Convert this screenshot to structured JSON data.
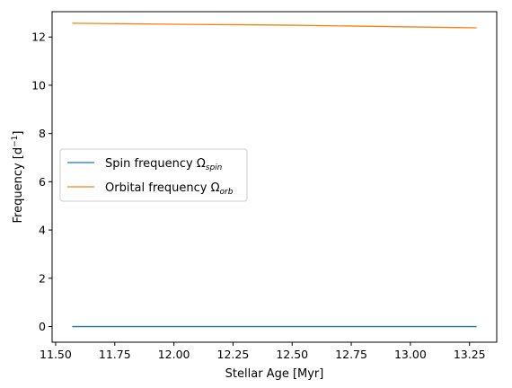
{
  "chart_data": {
    "type": "line",
    "xlabel": "Stellar Age [Myr]",
    "ylabel_base": "Frequency [d",
    "ylabel_sup": "−1",
    "ylabel_close": "]",
    "xlim": [
      11.485,
      13.365
    ],
    "ylim": [
      -0.65,
      13.05
    ],
    "x_ticks": [
      11.5,
      11.75,
      12.0,
      12.25,
      12.5,
      12.75,
      13.0,
      13.25
    ],
    "x_tick_labels": [
      "11.50",
      "11.75",
      "12.00",
      "12.25",
      "12.50",
      "12.75",
      "13.00",
      "13.25"
    ],
    "y_ticks": [
      0,
      2,
      4,
      6,
      8,
      10,
      12
    ],
    "y_tick_labels": [
      "0",
      "2",
      "4",
      "6",
      "8",
      "10",
      "12"
    ],
    "legend_position": "center-left",
    "series": [
      {
        "label_main": "Spin frequency Ω",
        "label_sub": "spin",
        "color": "#1f77b4",
        "x": [
          11.57,
          13.28
        ],
        "y": [
          0.0,
          0.0
        ]
      },
      {
        "label_main": "Orbital frequency Ω",
        "label_sub": "orb",
        "color": "#ff7f0e",
        "x": [
          11.57,
          12.0,
          12.5,
          13.0,
          13.28
        ],
        "y": [
          12.57,
          12.53,
          12.49,
          12.42,
          12.38
        ]
      }
    ]
  }
}
